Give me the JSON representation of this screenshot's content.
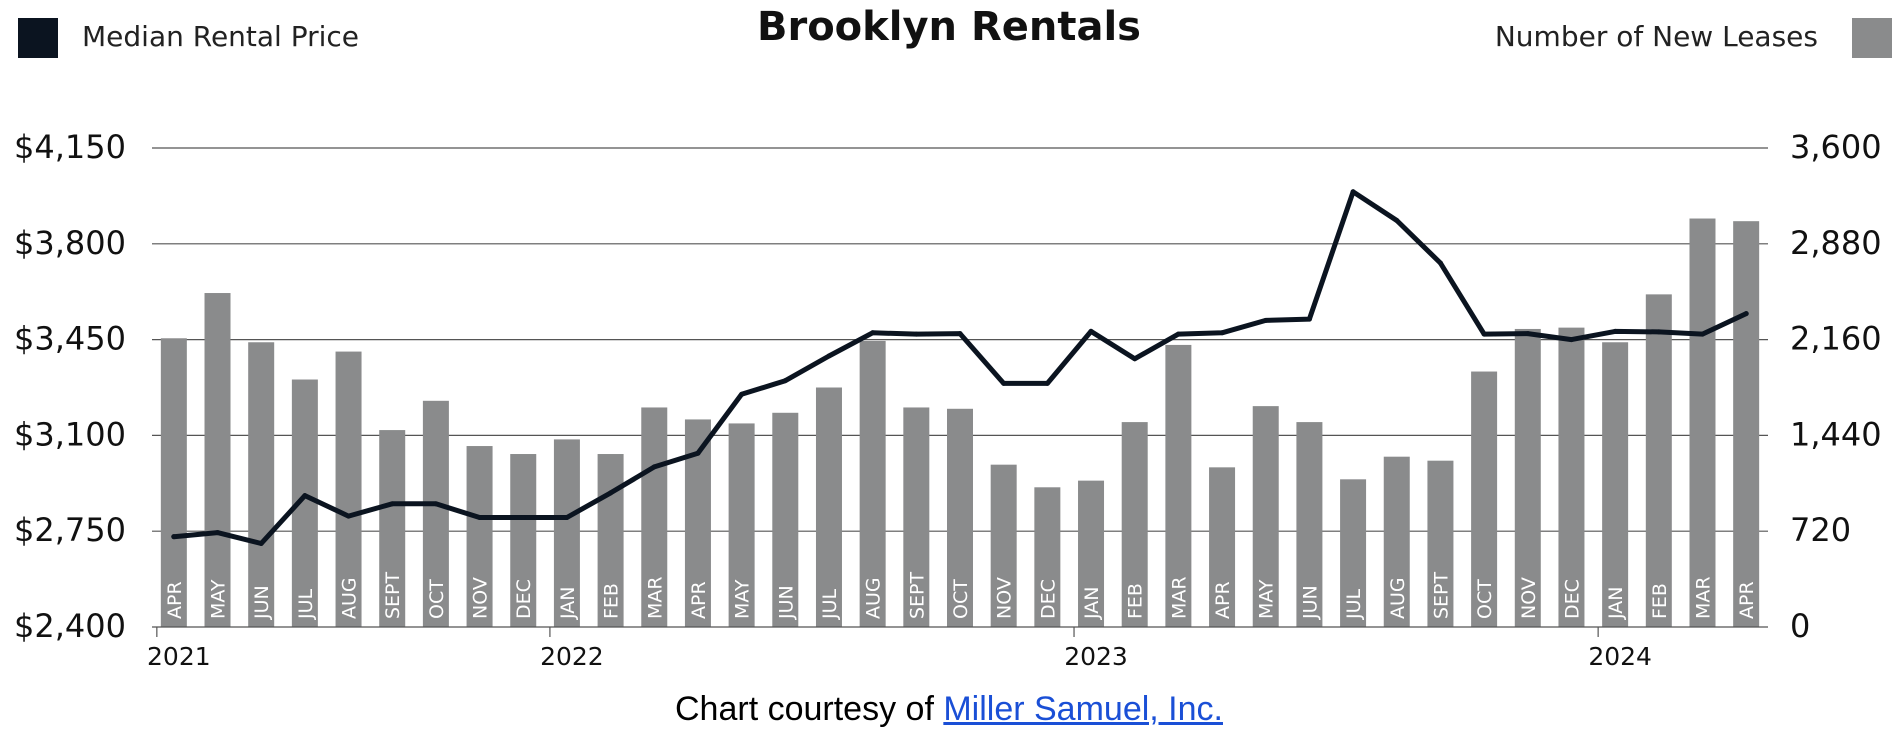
{
  "colors": {
    "line": "#0b1420",
    "bar": "#8a8b8c",
    "grid": "#555555",
    "text": "#222222",
    "link": "#1a4fd6"
  },
  "legend": {
    "left": {
      "label": "Median Rental Price",
      "color": "#0b1420"
    },
    "right": {
      "label": "Number of New Leases",
      "color": "#8a8b8c"
    }
  },
  "title": "Brooklyn Rentals",
  "credit": {
    "prefix": "Chart courtesy of ",
    "link_text": "Miller Samuel, Inc."
  },
  "chart_data": {
    "type": "bar",
    "title": "Brooklyn Rentals",
    "categories": [
      "APR",
      "MAY",
      "JUN",
      "JUL",
      "AUG",
      "SEPT",
      "OCT",
      "NOV",
      "DEC",
      "JAN",
      "FEB",
      "MAR",
      "APR",
      "MAY",
      "JUN",
      "JUL",
      "AUG",
      "SEPT",
      "OCT",
      "NOV",
      "DEC",
      "JAN",
      "FEB",
      "MAR",
      "APR",
      "MAY",
      "JUN",
      "JUL",
      "AUG",
      "SEPT",
      "OCT",
      "NOV",
      "DEC",
      "JAN",
      "FEB",
      "MAR",
      "APR"
    ],
    "year_labels": [
      {
        "label": "2021",
        "category_index": 0
      },
      {
        "label": "2022",
        "category_index": 9
      },
      {
        "label": "2023",
        "category_index": 21
      },
      {
        "label": "2024",
        "category_index": 33
      }
    ],
    "series": [
      {
        "name": "Number of New Leases",
        "type": "bar",
        "axis": "right",
        "values": [
          2170,
          2510,
          2140,
          1860,
          2070,
          1480,
          1700,
          1360,
          1300,
          1410,
          1300,
          1650,
          1560,
          1530,
          1610,
          1800,
          2150,
          1650,
          1640,
          1220,
          1050,
          1100,
          1540,
          2120,
          1200,
          1660,
          1540,
          1110,
          1280,
          1250,
          1920,
          2240,
          2250,
          2140,
          2500,
          3070,
          3050
        ]
      },
      {
        "name": "Median Rental Price",
        "type": "line",
        "axis": "left",
        "values": [
          2730,
          2745,
          2705,
          2880,
          2805,
          2850,
          2850,
          2800,
          2800,
          2800,
          2890,
          2985,
          3035,
          3250,
          3300,
          3390,
          3475,
          3470,
          3472,
          3290,
          3290,
          3480,
          3380,
          3470,
          3475,
          3520,
          3525,
          3990,
          3885,
          3730,
          3470,
          3472,
          3450,
          3480,
          3478,
          3470,
          3545
        ]
      }
    ],
    "y_left": {
      "min": 2400,
      "max": 4150,
      "ticks": [
        "$2,400",
        "$2,750",
        "$3,100",
        "$3,450",
        "$3,800",
        "$4,150"
      ]
    },
    "y_right": {
      "min": 0,
      "max": 3600,
      "ticks": [
        "0",
        "720",
        "1,440",
        "2,160",
        "2,880",
        "3,600"
      ]
    },
    "grid": true,
    "legend_position": "top"
  }
}
